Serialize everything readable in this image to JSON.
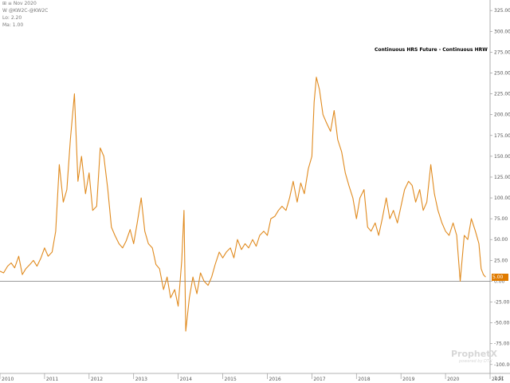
{
  "header": {
    "line1": "⊞ ≡ Nov 2020",
    "line2": "W @KW2C-@KW2C",
    "line3": "Lo: 2.20",
    "line4": "Ma: 1.00"
  },
  "watermark": {
    "brand": "ProphetX",
    "tagline": "powered by DTN"
  },
  "footer": {
    "corner": "1 St"
  },
  "colors": {
    "series": "#e08a1e",
    "zero_line": "#8c8c8c",
    "axis_text": "#555555",
    "price_tag": "#e07b00"
  },
  "chart_data": {
    "type": "line",
    "title": "Continuous HRS Future - Continuous HRW",
    "xlabel": "",
    "ylabel": "",
    "x_tick_labels": [
      "2010",
      "2011",
      "2012",
      "2013",
      "2014",
      "2015",
      "2016",
      "2017",
      "2018",
      "2019",
      "2020",
      "2021"
    ],
    "x_range": [
      2010.0,
      2021.0
    ],
    "y_tick_values": [
      -100,
      -75,
      -50,
      -25,
      0,
      25,
      50,
      75,
      100,
      125,
      150,
      175,
      200,
      225,
      250,
      275,
      300,
      325
    ],
    "y_tick_labels": [
      "-100.00",
      "-75.00",
      "-50.00",
      "-25.00",
      "0.00",
      "25.00",
      "50.00",
      "75.00",
      "100.00",
      "125.00",
      "150.00",
      "175.00",
      "200.00",
      "225.00",
      "250.00",
      "275.00",
      "300.00",
      "325.00"
    ],
    "ylim": [
      -105,
      335
    ],
    "reference_line": 0,
    "last_value": 5.0,
    "last_value_label": "5.00",
    "grid": false,
    "series": [
      {
        "x": [
          2010.0,
          2010.08,
          2010.17,
          2010.25,
          2010.33,
          2010.42,
          2010.5,
          2010.58,
          2010.67,
          2010.75,
          2010.83,
          2010.92,
          2011.0,
          2011.08,
          2011.17,
          2011.25,
          2011.33,
          2011.42,
          2011.5,
          2011.58,
          2011.67,
          2011.75,
          2011.83,
          2011.92,
          2012.0,
          2012.08,
          2012.17,
          2012.25,
          2012.33,
          2012.42,
          2012.5,
          2012.58,
          2012.67,
          2012.75,
          2012.83,
          2012.92,
          2013.0,
          2013.08,
          2013.17,
          2013.25,
          2013.33,
          2013.42,
          2013.5,
          2013.58,
          2013.67,
          2013.75,
          2013.83,
          2013.92,
          2014.0,
          2014.08,
          2014.13,
          2014.17,
          2014.25,
          2014.33,
          2014.42,
          2014.5,
          2014.58,
          2014.67,
          2014.75,
          2014.83,
          2014.92,
          2015.0,
          2015.08,
          2015.17,
          2015.25,
          2015.33,
          2015.42,
          2015.5,
          2015.58,
          2015.67,
          2015.75,
          2015.83,
          2015.92,
          2016.0,
          2016.08,
          2016.17,
          2016.25,
          2016.33,
          2016.42,
          2016.5,
          2016.58,
          2016.67,
          2016.75,
          2016.83,
          2016.92,
          2017.0,
          2017.05,
          2017.1,
          2017.17,
          2017.25,
          2017.33,
          2017.42,
          2017.5,
          2017.58,
          2017.67,
          2017.75,
          2017.83,
          2017.92,
          2018.0,
          2018.08,
          2018.17,
          2018.25,
          2018.33,
          2018.42,
          2018.5,
          2018.58,
          2018.67,
          2018.75,
          2018.83,
          2018.92,
          2019.0,
          2019.08,
          2019.17,
          2019.25,
          2019.33,
          2019.42,
          2019.5,
          2019.58,
          2019.67,
          2019.75,
          2019.83,
          2019.92,
          2020.0,
          2020.08,
          2020.17,
          2020.25,
          2020.33,
          2020.42,
          2020.5,
          2020.58,
          2020.67,
          2020.75,
          2020.8,
          2020.85,
          2020.9
        ],
        "values": [
          12,
          10,
          18,
          22,
          16,
          30,
          8,
          15,
          20,
          25,
          18,
          28,
          40,
          30,
          35,
          60,
          140,
          95,
          110,
          170,
          225,
          120,
          150,
          105,
          130,
          85,
          90,
          160,
          150,
          110,
          65,
          55,
          45,
          40,
          48,
          62,
          45,
          70,
          100,
          60,
          45,
          40,
          20,
          15,
          -10,
          5,
          -20,
          -10,
          -30,
          25,
          85,
          -60,
          -20,
          5,
          -15,
          10,
          0,
          -5,
          5,
          20,
          35,
          28,
          35,
          40,
          28,
          50,
          38,
          45,
          40,
          50,
          42,
          55,
          60,
          55,
          75,
          78,
          85,
          90,
          85,
          100,
          120,
          95,
          118,
          105,
          135,
          150,
          215,
          245,
          230,
          200,
          190,
          180,
          205,
          170,
          155,
          130,
          115,
          100,
          75,
          100,
          110,
          65,
          60,
          70,
          55,
          75,
          100,
          75,
          85,
          70,
          90,
          110,
          120,
          115,
          95,
          110,
          85,
          95,
          140,
          105,
          85,
          70,
          60,
          55,
          70,
          55,
          0,
          55,
          50,
          75,
          60,
          45,
          15,
          8,
          5
        ]
      }
    ]
  }
}
